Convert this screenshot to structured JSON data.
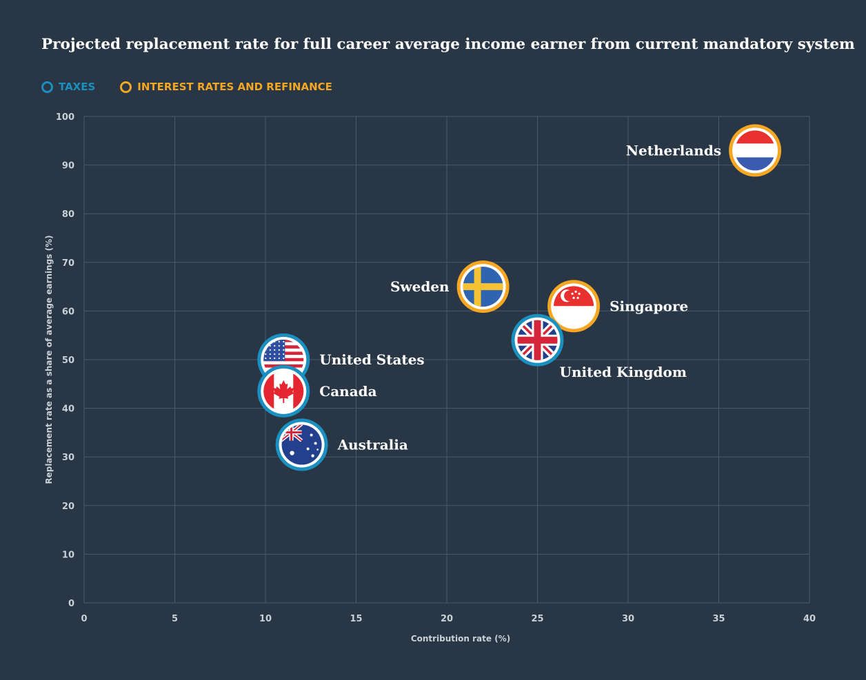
{
  "chart_data": {
    "type": "scatter",
    "title": "Projected replacement rate for full career average income earner from current mandatory system",
    "xlabel": "Contribution rate (%)",
    "ylabel": "Replacement rate as a share of average earnings (%)",
    "xlim": [
      0,
      40
    ],
    "ylim": [
      0,
      100
    ],
    "xticks": [
      0,
      5,
      10,
      15,
      20,
      25,
      30,
      35,
      40
    ],
    "yticks": [
      0,
      10,
      20,
      30,
      40,
      50,
      60,
      70,
      80,
      90,
      100
    ],
    "grid": true,
    "legend": [
      {
        "label": "TAXES",
        "color": "#1b8fc0"
      },
      {
        "label": "INTEREST RATES AND REFINANCE",
        "color": "#f5a623"
      }
    ],
    "points": [
      {
        "country": "Netherlands",
        "x": 37,
        "y": 93,
        "category": "INTEREST RATES AND REFINANCE",
        "flag": "netherlands-flag",
        "label_side": "left"
      },
      {
        "country": "Sweden",
        "x": 22,
        "y": 65,
        "category": "INTEREST RATES AND REFINANCE",
        "flag": "sweden-flag",
        "label_side": "left"
      },
      {
        "country": "Singapore",
        "x": 27,
        "y": 61,
        "category": "INTEREST RATES AND REFINANCE",
        "flag": "singapore-flag",
        "label_side": "right"
      },
      {
        "country": "United Kingdom",
        "x": 25,
        "y": 54,
        "category": "TAXES",
        "flag": "united-kingdom-flag",
        "label_side": "below-right"
      },
      {
        "country": "United States",
        "x": 11,
        "y": 50,
        "category": "TAXES",
        "flag": "united-states-flag",
        "label_side": "right"
      },
      {
        "country": "Canada",
        "x": 11,
        "y": 43.5,
        "category": "TAXES",
        "flag": "canada-flag",
        "label_side": "right"
      },
      {
        "country": "Australia",
        "x": 12,
        "y": 32.5,
        "category": "TAXES",
        "flag": "australia-flag",
        "label_side": "right"
      }
    ]
  }
}
